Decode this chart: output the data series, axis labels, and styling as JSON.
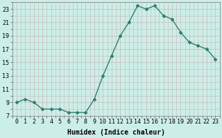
{
  "x": [
    0,
    1,
    2,
    3,
    4,
    5,
    6,
    7,
    8,
    9,
    10,
    11,
    12,
    13,
    14,
    15,
    16,
    17,
    18,
    19,
    20,
    21,
    22,
    23
  ],
  "y": [
    9,
    9.5,
    9,
    8,
    8,
    8,
    7.5,
    7.5,
    7.5,
    9.5,
    13,
    16,
    19,
    21,
    23.5,
    23,
    23.5,
    22,
    21.5,
    19.5,
    18,
    17.5,
    17,
    15.5
  ],
  "line_color": "#2e7d6e",
  "marker": "D",
  "marker_size": 2.5,
  "bg_color": "#cceee8",
  "grid_color_major": "#c8b8b8",
  "grid_color_minor": "#c8b8b8",
  "xlabel": "Humidex (Indice chaleur)",
  "ylim": [
    7,
    24
  ],
  "yticks": [
    7,
    9,
    11,
    13,
    15,
    17,
    19,
    21,
    23
  ],
  "xticks": [
    0,
    1,
    2,
    3,
    4,
    5,
    6,
    7,
    8,
    9,
    10,
    11,
    12,
    13,
    14,
    15,
    16,
    17,
    18,
    19,
    20,
    21,
    22,
    23
  ],
  "xlabel_fontsize": 7,
  "tick_fontsize": 6,
  "line_width": 1.0
}
